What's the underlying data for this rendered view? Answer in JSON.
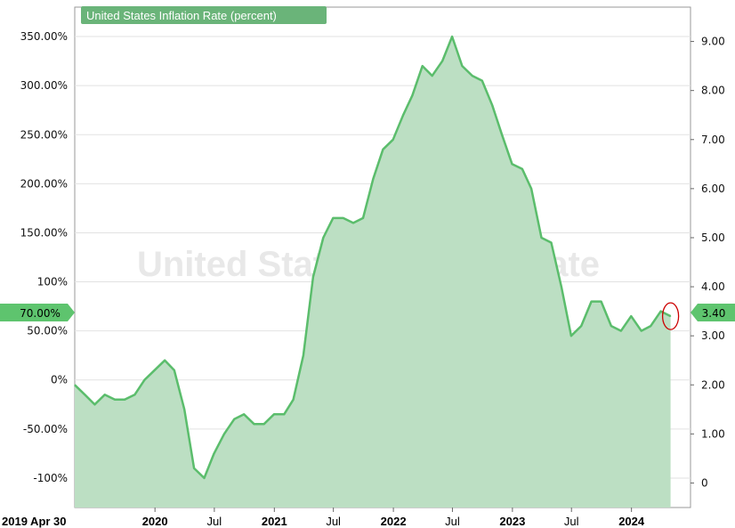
{
  "chart_data": {
    "type": "area",
    "legend_label": "United States Inflation Rate (percent)",
    "watermark": "United States Inflation Rate",
    "left_axis": {
      "ticks": [
        -100,
        -50,
        0,
        50,
        100,
        150,
        200,
        250,
        300,
        350
      ],
      "tick_labels": [
        "-100%",
        "-50.00%",
        "0%",
        "50.00%",
        "100%",
        "150.00%",
        "200.00%",
        "250.00%",
        "300.00%",
        "350.00%"
      ],
      "range": [
        -130,
        380
      ]
    },
    "right_axis": {
      "ticks": [
        0,
        1,
        2,
        3,
        4,
        5,
        6,
        7,
        8,
        9
      ],
      "tick_labels": [
        "0",
        "1.00",
        "2.00",
        "3.00",
        "4.00",
        "5.00",
        "6.00",
        "7.00",
        "8.00",
        "9.00"
      ],
      "range": [
        -0.5,
        9.7
      ]
    },
    "x_axis": {
      "range": [
        "2019-04-30",
        "2024-06-30"
      ],
      "start_label": "2019 Apr 30",
      "ticks": [
        {
          "date": "2020-01-01",
          "label": "2020",
          "bold": true
        },
        {
          "date": "2020-07-01",
          "label": "Jul",
          "bold": false
        },
        {
          "date": "2021-01-01",
          "label": "2021",
          "bold": true
        },
        {
          "date": "2021-07-01",
          "label": "Jul",
          "bold": false
        },
        {
          "date": "2022-01-01",
          "label": "2022",
          "bold": true
        },
        {
          "date": "2022-07-01",
          "label": "Jul",
          "bold": false
        },
        {
          "date": "2023-01-01",
          "label": "2023",
          "bold": true
        },
        {
          "date": "2023-07-01",
          "label": "Jul",
          "bold": false
        },
        {
          "date": "2024-01-01",
          "label": "2024",
          "bold": true
        }
      ]
    },
    "series": [
      {
        "x": [
          "2019-04-30",
          "2019-05-31",
          "2019-06-30",
          "2019-07-31",
          "2019-08-31",
          "2019-09-30",
          "2019-10-31",
          "2019-11-30",
          "2019-12-31",
          "2020-01-31",
          "2020-02-29",
          "2020-03-31",
          "2020-04-30",
          "2020-05-31",
          "2020-06-30",
          "2020-07-31",
          "2020-08-31",
          "2020-09-30",
          "2020-10-31",
          "2020-11-30",
          "2020-12-31",
          "2021-01-31",
          "2021-02-28",
          "2021-03-31",
          "2021-04-30",
          "2021-05-31",
          "2021-06-30",
          "2021-07-31",
          "2021-08-31",
          "2021-09-30",
          "2021-10-31",
          "2021-11-30",
          "2021-12-31",
          "2022-01-31",
          "2022-02-28",
          "2022-03-31",
          "2022-04-30",
          "2022-05-31",
          "2022-06-30",
          "2022-07-31",
          "2022-08-31",
          "2022-09-30",
          "2022-10-31",
          "2022-11-30",
          "2022-12-31",
          "2023-01-31",
          "2023-02-28",
          "2023-03-31",
          "2023-04-30",
          "2023-05-31",
          "2023-06-30",
          "2023-07-31",
          "2023-08-31",
          "2023-09-30",
          "2023-10-31",
          "2023-11-30",
          "2023-12-31",
          "2024-01-31",
          "2024-02-29",
          "2024-03-31",
          "2024-04-30"
        ],
        "values": [
          2.0,
          1.8,
          1.6,
          1.8,
          1.7,
          1.7,
          1.8,
          2.1,
          2.3,
          2.5,
          2.3,
          1.5,
          0.3,
          0.1,
          0.6,
          1.0,
          1.3,
          1.4,
          1.2,
          1.2,
          1.4,
          1.4,
          1.7,
          2.6,
          4.2,
          5.0,
          5.4,
          5.4,
          5.3,
          5.4,
          6.2,
          6.8,
          7.0,
          7.5,
          7.9,
          8.5,
          8.3,
          8.6,
          9.1,
          8.5,
          8.3,
          8.2,
          7.7,
          7.1,
          6.5,
          6.4,
          6.0,
          5.0,
          4.9,
          4.0,
          3.0,
          3.2,
          3.7,
          3.7,
          3.2,
          3.1,
          3.4,
          3.1,
          3.2,
          3.5,
          3.4
        ]
      }
    ],
    "last_value": {
      "left_label": "70.00%",
      "right_label": "3.40"
    },
    "colors": {
      "line": "#5bbd6c",
      "fill": "#bcdfc3",
      "legend_bg": "#6ab479",
      "marker_bg": "#5ec46e",
      "circle": "#cc0000"
    }
  }
}
